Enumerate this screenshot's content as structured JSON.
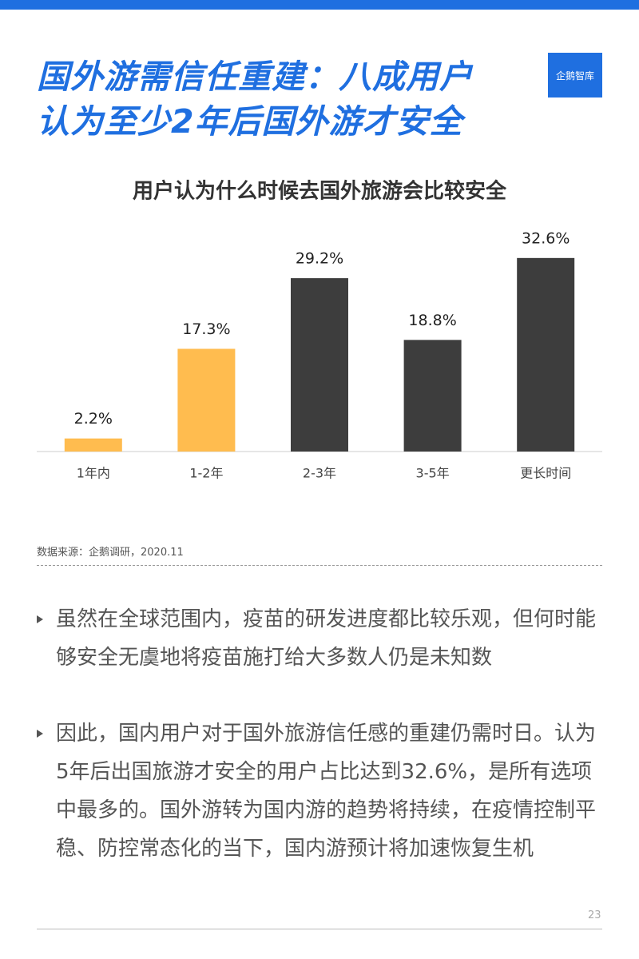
{
  "header": {
    "title_lines": [
      "国外游需信任重建：八成用户",
      "认为至少2年后国外游才安全"
    ],
    "logo": "企鹅智库"
  },
  "chart_data": {
    "type": "bar",
    "title": "用户认为什么时候去国外旅游会比较安全",
    "categories": [
      "1年内",
      "1-2年",
      "2-3年",
      "3-5年",
      "更长时间"
    ],
    "values": [
      2.2,
      17.3,
      29.2,
      18.8,
      32.6
    ],
    "value_labels": [
      "2.2%",
      "17.3%",
      "29.2%",
      "18.8%",
      "32.6%"
    ],
    "colors": [
      "#ffbc4f",
      "#ffbc4f",
      "#3d3d3d",
      "#3d3d3d",
      "#3d3d3d"
    ],
    "ylim": [
      0,
      35
    ]
  },
  "source": "数据来源：企鹅调研，2020.11",
  "bullets": [
    "虽然在全球范围内，疫苗的研发进度都比较乐观，但何时能够安全无虞地将疫苗施打给大多数人仍是未知数",
    "因此，国内用户对于国外旅游信任感的重建仍需时日。认为5年后出国旅游才安全的用户占比达到32.6%，是所有选项中最多的。国外游转为国内游的趋势将持续，在疫情控制平稳、防控常态化的当下，国内游预计将加速恢复生机"
  ],
  "page_number": "23"
}
